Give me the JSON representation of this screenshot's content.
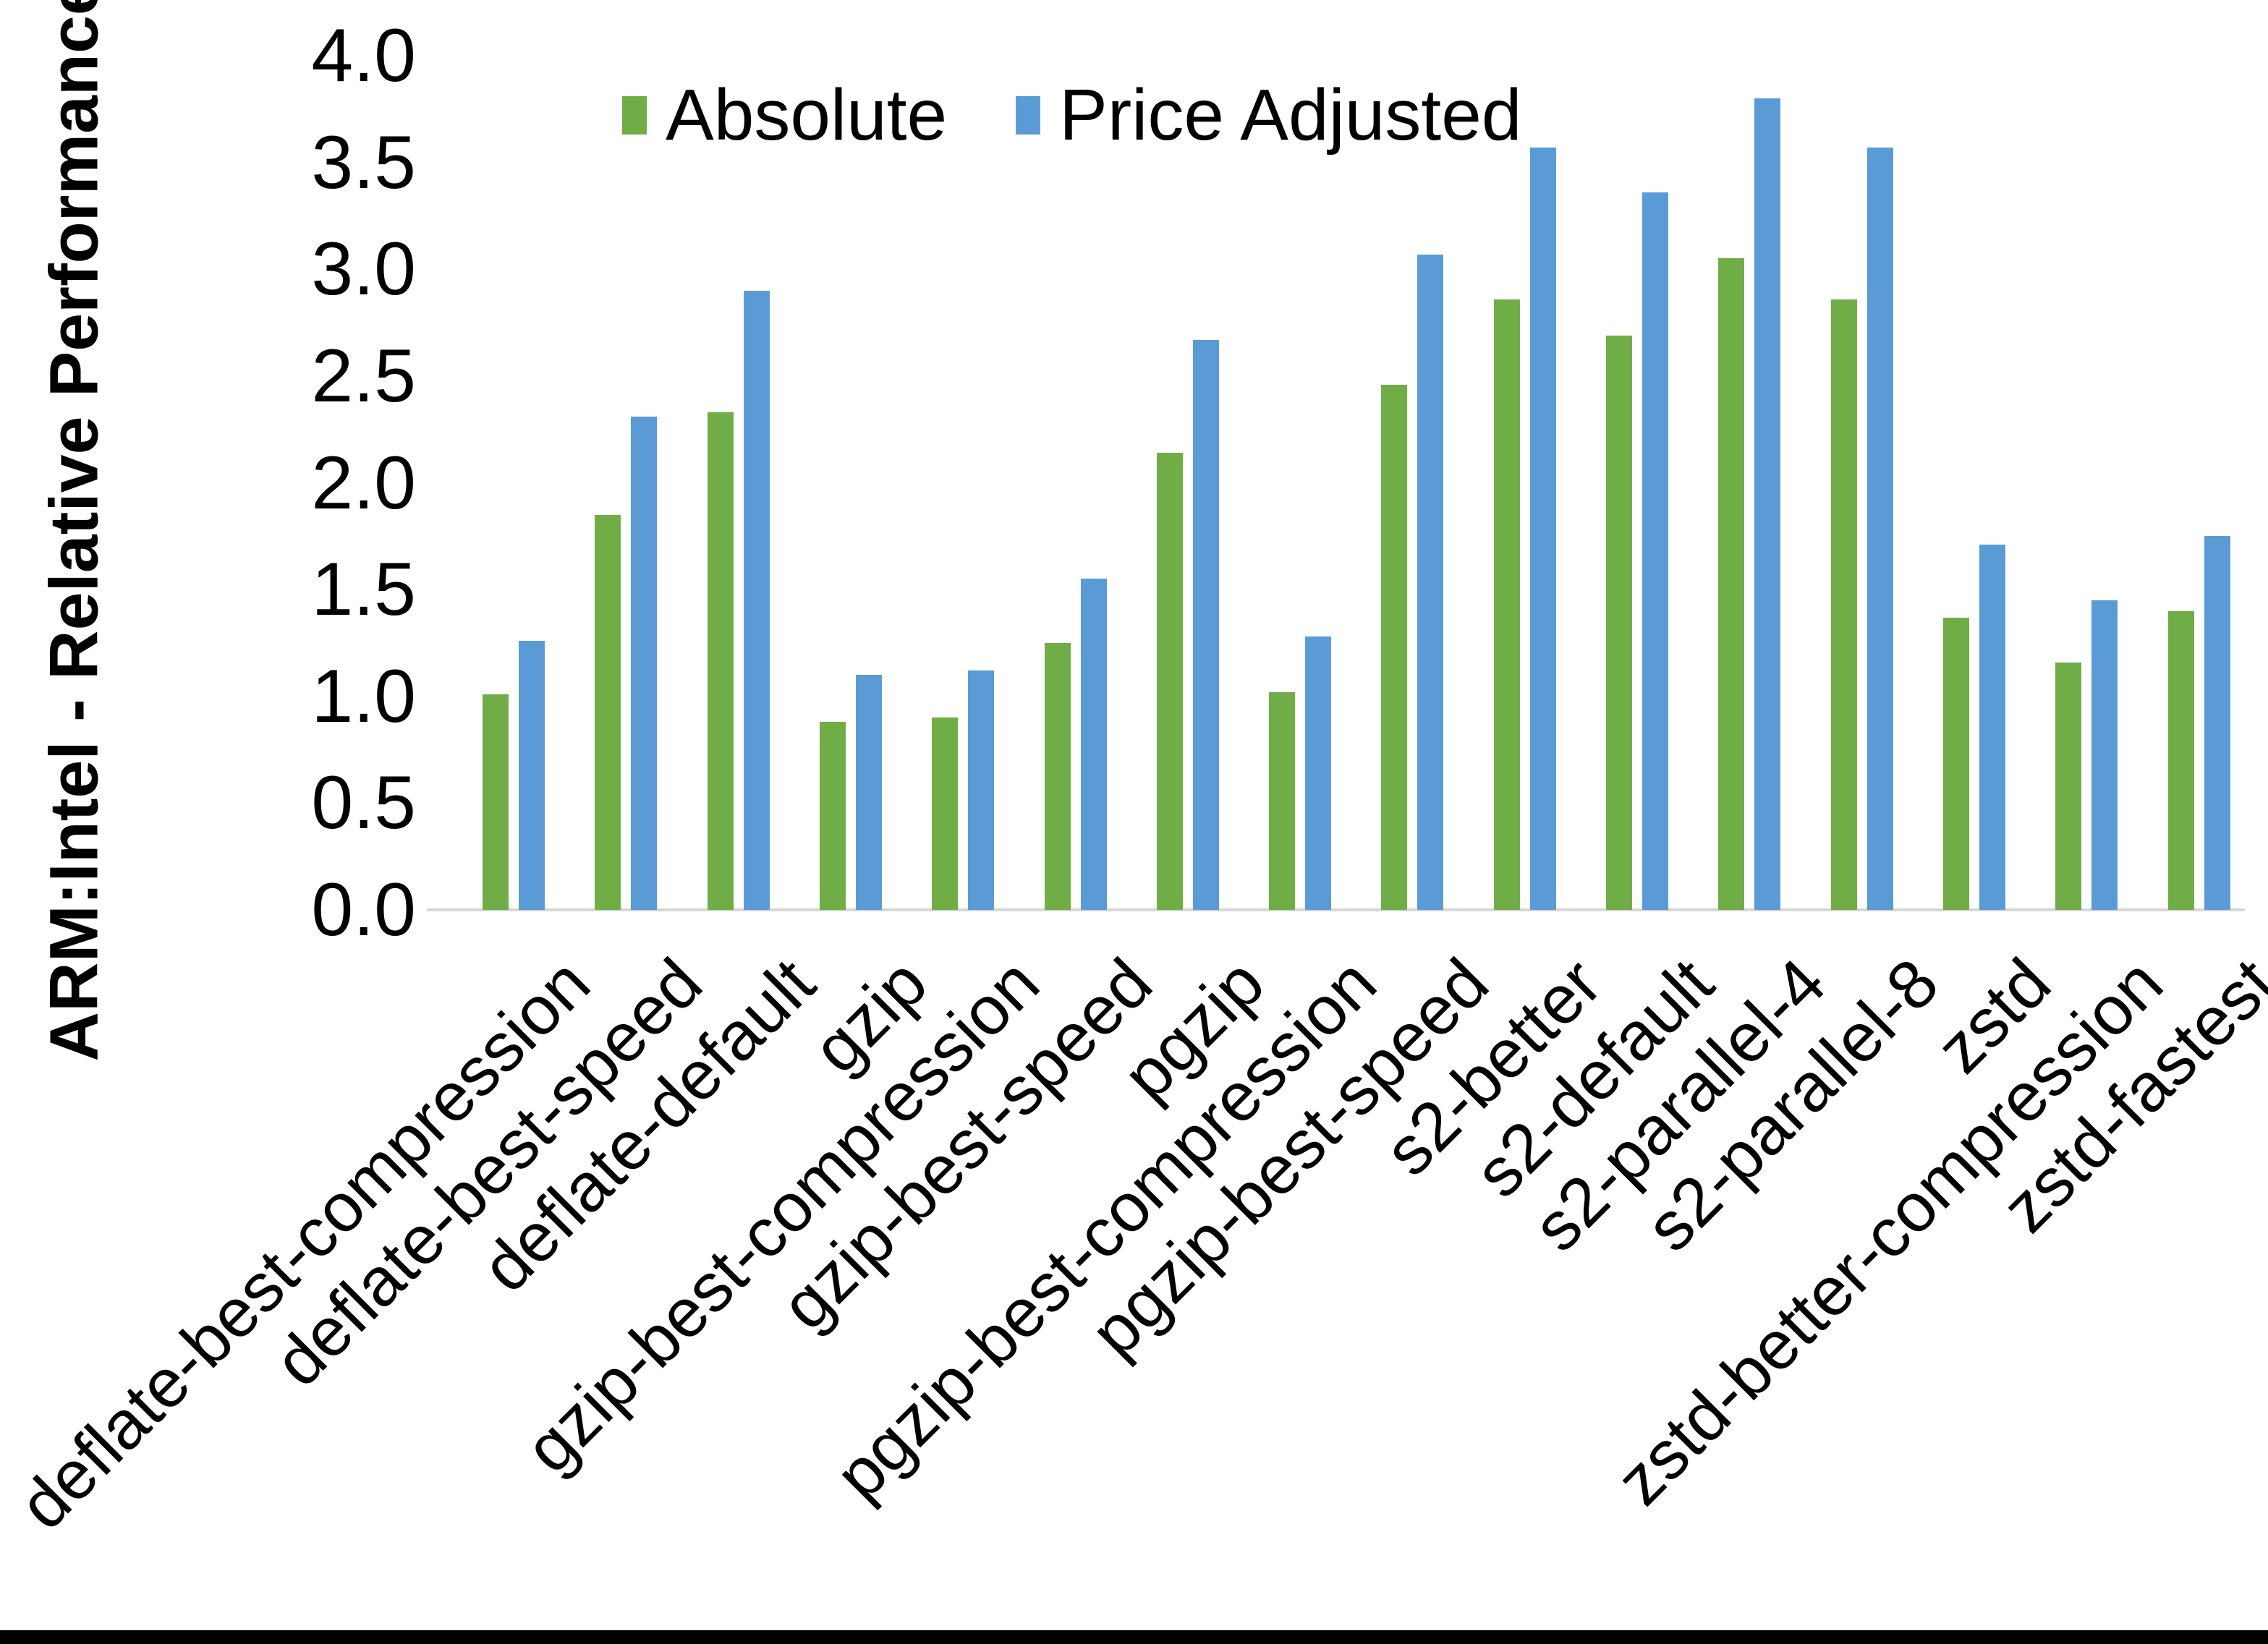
{
  "chart_data": {
    "type": "bar",
    "title": "",
    "xlabel": "",
    "ylabel": "ARM:Intel - Relative Performance",
    "ylim": [
      0.0,
      4.0
    ],
    "ytick_step": 0.5,
    "ytick_labels": [
      "0.0",
      "0.5",
      "1.0",
      "1.5",
      "2.0",
      "2.5",
      "3.0",
      "3.5",
      "4.0"
    ],
    "grid": false,
    "legend_position": "top-inside",
    "categories": [
      "deflate-best-compression",
      "deflate-best-speed",
      "deflate-default",
      "gzip",
      "gzip-best-compression",
      "gzip-best-speed",
      "pgzip",
      "pgzip-best-compression",
      "pgzip-best-speed",
      "s2-better",
      "s2-default",
      "s2-parallel-4",
      "s2-parallel-8",
      "zstd",
      "zstd-better-compression",
      "zstd-fastest"
    ],
    "series": [
      {
        "name": "Absolute",
        "color": "#70AD47",
        "values": [
          1.01,
          1.85,
          2.33,
          0.88,
          0.9,
          1.25,
          2.14,
          1.02,
          2.46,
          2.86,
          2.69,
          3.05,
          2.86,
          1.37,
          1.16,
          1.4
        ]
      },
      {
        "name": "Price Adjusted",
        "color": "#5B9BD5",
        "values": [
          1.26,
          2.31,
          2.9,
          1.1,
          1.12,
          1.55,
          2.67,
          1.28,
          3.07,
          3.57,
          3.36,
          3.8,
          3.57,
          1.71,
          1.45,
          1.75
        ]
      }
    ]
  },
  "colors": {
    "background": "#FFFFFF",
    "axis_line": "#D6D6D6",
    "text": "#000000",
    "bottom_border": "#000000"
  }
}
